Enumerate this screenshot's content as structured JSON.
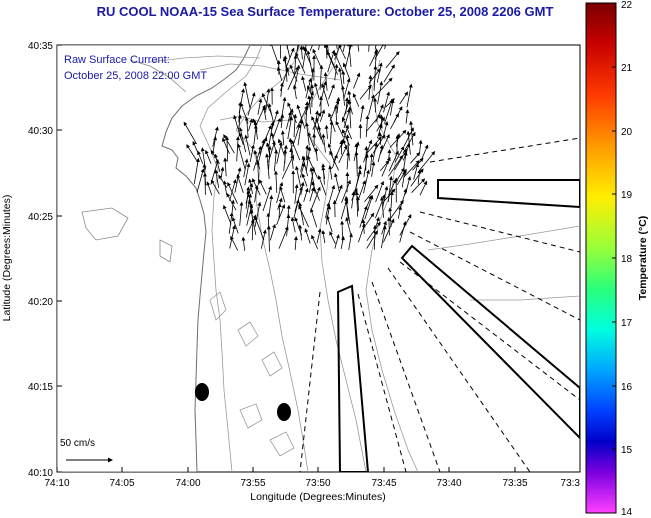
{
  "title": "RU COOL  NOAA-15  Sea Surface Temperature:  October 25, 2008 2206 GMT",
  "annotation": {
    "line1": "Raw Surface Current:",
    "line2": "October 25, 2008 22:00 GMT"
  },
  "scale_label": "50 cm/s",
  "axes": {
    "xlabel": "Longitude (Degrees:Minutes)",
    "ylabel": "Latitude (Degrees:Minutes)",
    "x_ticks": [
      "74:10",
      "74:05",
      "74:00",
      "73:55",
      "73:50",
      "73:45",
      "73:40",
      "73:35",
      "73:3"
    ],
    "y_ticks": [
      "40:35",
      "40:30",
      "40:25",
      "40:20",
      "40:15",
      "40:10"
    ]
  },
  "colorbar": {
    "label": "Temperature (°C)",
    "ticks": [
      "22",
      "21",
      "20",
      "19",
      "18",
      "17",
      "16",
      "15",
      "14"
    ],
    "min": 14,
    "max": 22
  },
  "colors": {
    "title": "#1a1aa6",
    "land": "#ffffff",
    "contour": "#9a9a9a"
  }
}
